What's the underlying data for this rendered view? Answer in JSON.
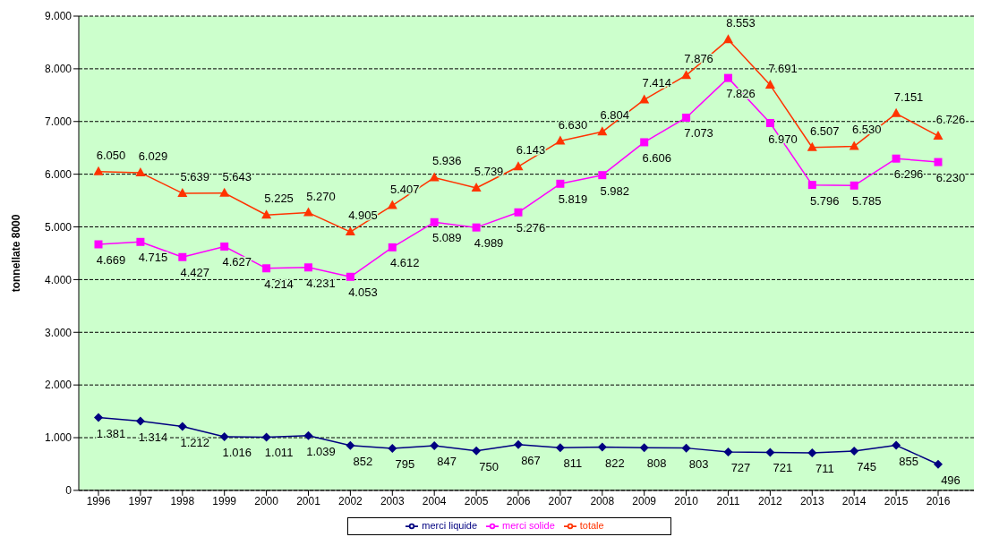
{
  "chart_data": {
    "type": "line",
    "ylabel": "tonnellate 8000",
    "categories": [
      "1996",
      "1997",
      "1998",
      "1999",
      "2000",
      "2001",
      "2002",
      "2003",
      "2004",
      "2005",
      "2006",
      "2007",
      "2008",
      "2009",
      "2010",
      "2011",
      "2012",
      "2013",
      "2014",
      "2015",
      "2016"
    ],
    "series": [
      {
        "name": "merci liquide",
        "color": "#000080",
        "marker": "diamond",
        "values": [
          1381,
          1314,
          1212,
          1016,
          1011,
          1039,
          852,
          795,
          847,
          750,
          867,
          811,
          822,
          808,
          803,
          727,
          721,
          711,
          745,
          855,
          496
        ],
        "value_labels": [
          "1.381",
          "1.314",
          "1.212",
          "1.016",
          "1.011",
          "1.039",
          "852",
          "795",
          "847",
          "750",
          "867",
          "811",
          "822",
          "808",
          "803",
          "727",
          "721",
          "711",
          "745",
          "855",
          "496"
        ]
      },
      {
        "name": "merci solide",
        "color": "#ff00ff",
        "marker": "square",
        "values": [
          4669,
          4715,
          4427,
          4627,
          4214,
          4231,
          4053,
          4612,
          5089,
          4989,
          5276,
          5819,
          5982,
          6606,
          7073,
          7826,
          6970,
          5796,
          5785,
          6296,
          6230
        ],
        "value_labels": [
          "4.669",
          "4.715",
          "4.427",
          "4.627",
          "4.214",
          "4.231",
          "4.053",
          "4.612",
          "5.089",
          "4.989",
          "5.276",
          "5.819",
          "5.982",
          "6.606",
          "7.073",
          "7.826",
          "6.970",
          "5.796",
          "5.785",
          "6.296",
          "6.230"
        ]
      },
      {
        "name": "totale",
        "color": "#ff3300",
        "marker": "triangle",
        "values": [
          6050,
          6029,
          5639,
          5643,
          5225,
          5270,
          4905,
          5407,
          5936,
          5739,
          6143,
          6630,
          6804,
          7414,
          7876,
          8553,
          7691,
          6507,
          6530,
          7151,
          6726
        ],
        "value_labels": [
          "6.050",
          "6.029",
          "5.639",
          "5.643",
          "5.225",
          "5.270",
          "4.905",
          "5.407",
          "5.936",
          "5.739",
          "6.143",
          "6.630",
          "6.804",
          "7.414",
          "7.876",
          "8.553",
          "7.691",
          "6.507",
          "6.530",
          "7.151",
          "6.726"
        ]
      }
    ],
    "ylim": [
      0,
      9000
    ],
    "yticks": [
      0,
      {
        "value": 1000,
        "label": "1.000"
      },
      {
        "value": 2000,
        "label": "2.000"
      },
      {
        "value": 3000,
        "label": "3.000"
      },
      {
        "value": 4000,
        "label": "4.000"
      },
      {
        "value": 5000,
        "label": "5.000"
      },
      {
        "value": 6000,
        "label": "6.000"
      },
      {
        "value": 7000,
        "label": "7.000"
      },
      {
        "value": 8000,
        "label": "8.000"
      },
      {
        "value": 9000,
        "label": "9.000"
      }
    ],
    "grid": "y",
    "legend": "bottom",
    "line_style": "solid"
  }
}
